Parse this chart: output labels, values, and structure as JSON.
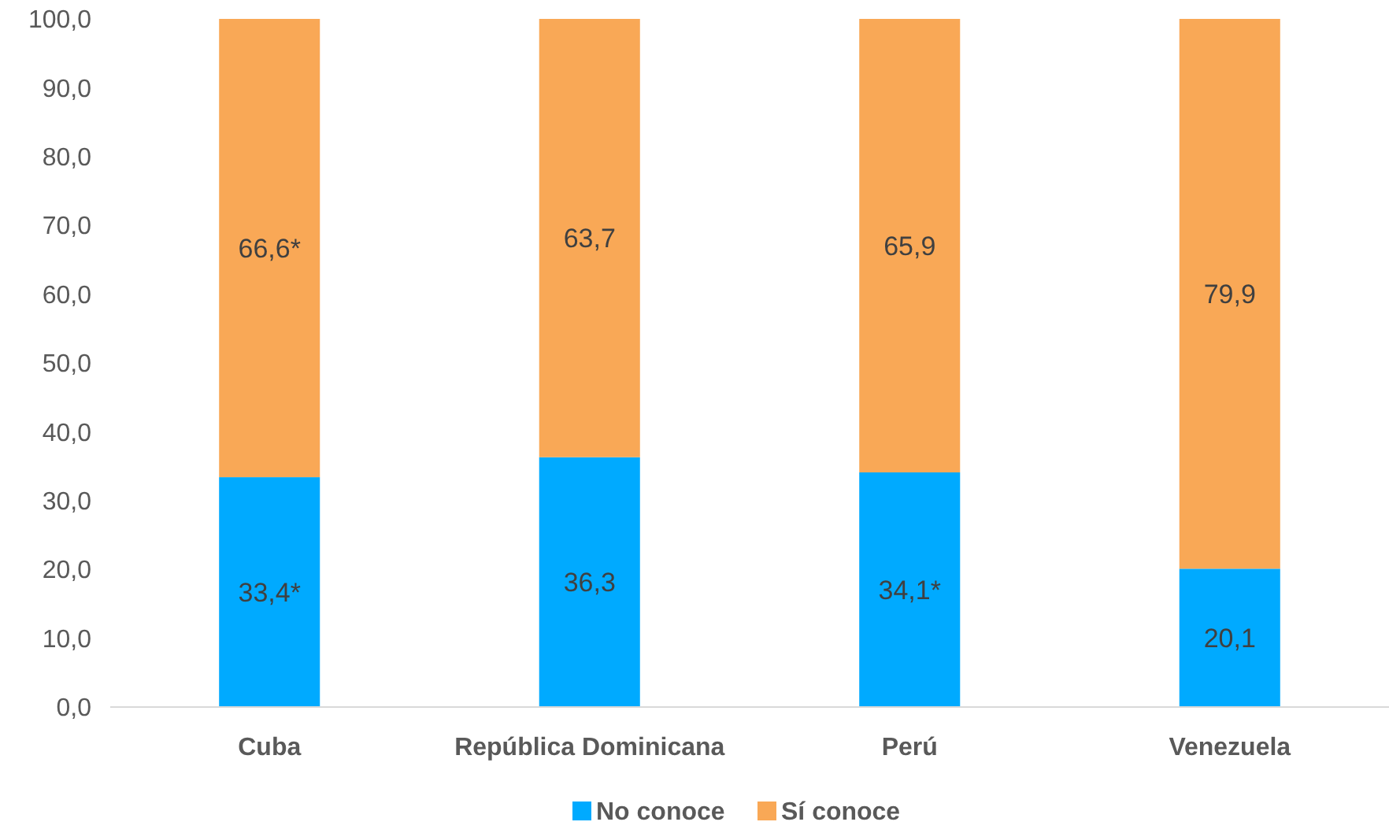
{
  "chart_data": {
    "type": "bar",
    "stacked": true,
    "categories": [
      "Cuba",
      "República Dominicana",
      "Perú",
      "Venezuela"
    ],
    "series": [
      {
        "name": "No conoce",
        "color": "#00aaff",
        "values": [
          33.4,
          36.3,
          34.1,
          20.1
        ],
        "value_labels": [
          "33,4*",
          "36,3",
          "34,1*",
          "20,1"
        ]
      },
      {
        "name": "Sí conoce",
        "color": "#f9a856",
        "values": [
          66.6,
          63.7,
          65.9,
          79.9
        ],
        "value_labels": [
          "66,6*",
          "63,7",
          "65,9",
          "79,9"
        ]
      }
    ],
    "ylim": [
      0,
      100
    ],
    "yticks": [
      {
        "value": 0,
        "label": "0,0"
      },
      {
        "value": 10,
        "label": "10,0"
      },
      {
        "value": 20,
        "label": "20,0"
      },
      {
        "value": 30,
        "label": "30,0"
      },
      {
        "value": 40,
        "label": "40,0"
      },
      {
        "value": 50,
        "label": "50,0"
      },
      {
        "value": 60,
        "label": "60,0"
      },
      {
        "value": 70,
        "label": "70,0"
      },
      {
        "value": 80,
        "label": "80,0"
      },
      {
        "value": 90,
        "label": "90,0"
      },
      {
        "value": 100,
        "label": "100,0"
      }
    ],
    "grid": false,
    "legend": "bottom"
  }
}
